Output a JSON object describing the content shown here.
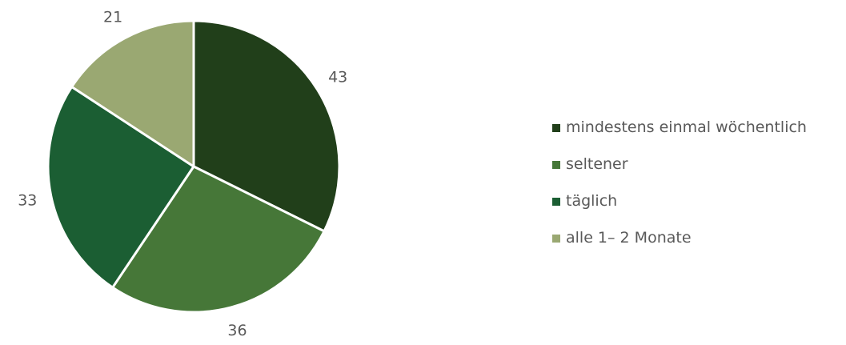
{
  "chart_data": {
    "type": "pie",
    "start_angle": "12 o'clock",
    "direction": "clockwise",
    "legend_position": "right",
    "slices": [
      {
        "label": "mindestens einmal wöchentlich",
        "value": 43,
        "value_label": "43",
        "color": "#213f1a"
      },
      {
        "label": "seltener",
        "value": 36,
        "value_label": "36",
        "color": "#467738"
      },
      {
        "label": "täglich",
        "value": 33,
        "value_label": "33",
        "color": "#1b5e33"
      },
      {
        "label": "alle 1– 2 Monate",
        "value": 21,
        "value_label": "21",
        "color": "#9aa872"
      }
    ]
  }
}
